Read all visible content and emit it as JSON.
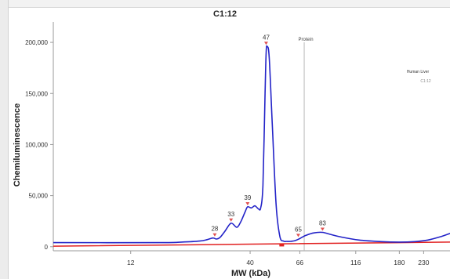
{
  "chart_data": {
    "type": "line",
    "title": "C1:12",
    "xlabel": "MW (kDa)",
    "ylabel": "Chemiluminescence",
    "x_scale": "log",
    "xlim": [
      5.5,
      300
    ],
    "ylim": [
      -4000,
      220000
    ],
    "x_ticks": [
      {
        "value": 12,
        "label": "12"
      },
      {
        "value": 40,
        "label": "40"
      },
      {
        "value": 66,
        "label": "66"
      },
      {
        "value": 116,
        "label": "116"
      },
      {
        "value": 180,
        "label": "180"
      },
      {
        "value": 230,
        "label": "230"
      }
    ],
    "y_ticks": [
      {
        "value": 0,
        "label": "0"
      },
      {
        "value": 50000,
        "label": "50,000"
      },
      {
        "value": 100000,
        "label": "100,000"
      },
      {
        "value": 150000,
        "label": "150,000"
      },
      {
        "value": 200000,
        "label": "200,000"
      }
    ],
    "grid": false,
    "series": [
      {
        "name": "C1:12",
        "color": "#2323c8",
        "x": [
          5.5,
          16,
          20,
          24,
          26,
          27.5,
          28.5,
          29.5,
          31,
          33,
          35,
          36.5,
          38,
          39,
          40.5,
          42,
          43.5,
          44.5,
          45.5,
          46.5,
          47,
          47.5,
          48.5,
          50,
          52,
          54,
          56,
          58,
          60,
          63,
          66,
          70,
          76,
          83,
          90,
          100,
          120,
          150,
          180,
          210,
          240,
          270,
          300
        ],
        "y": [
          4000,
          4000,
          4500,
          5500,
          7000,
          8500,
          7500,
          9000,
          15000,
          23000,
          19000,
          25000,
          34000,
          39000,
          38000,
          40000,
          37000,
          38000,
          60000,
          150000,
          190000,
          196000,
          185000,
          120000,
          40000,
          10000,
          5500,
          5200,
          5200,
          6000,
          8000,
          11000,
          13500,
          14000,
          12000,
          9500,
          6500,
          5000,
          4500,
          5000,
          6500,
          9500,
          13000
        ]
      },
      {
        "name": "Human Liver",
        "color": "#e12020",
        "x": [
          5.5,
          300
        ],
        "y": [
          500,
          4500
        ]
      }
    ],
    "peak_labels": [
      {
        "x": 28,
        "y": 8500,
        "label": "28"
      },
      {
        "x": 33,
        "y": 23000,
        "label": "33"
      },
      {
        "x": 39,
        "y": 39000,
        "label": "39"
      },
      {
        "x": 47,
        "y": 196000,
        "label": "47"
      },
      {
        "x": 65,
        "y": 8000,
        "label": "65"
      },
      {
        "x": 83,
        "y": 14000,
        "label": "83"
      }
    ],
    "reference_line": {
      "x": 69,
      "label": "Protein"
    },
    "legend": {
      "placement": "right",
      "entries": [
        "Human Liver",
        "C1:12"
      ]
    }
  }
}
